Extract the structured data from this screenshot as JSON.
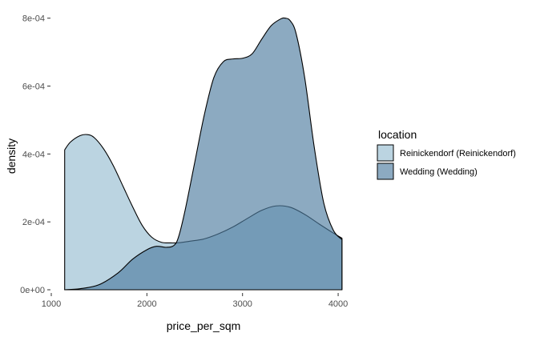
{
  "chart_data": {
    "type": "area",
    "subtype": "density",
    "title": "",
    "xlabel": "price_per_sqm",
    "ylabel": "density",
    "xlim": [
      1000,
      4100
    ],
    "ylim": [
      0,
      0.00083
    ],
    "xticks": [
      1000,
      2000,
      3000,
      4000
    ],
    "xtick_labels": [
      "1000",
      "2000",
      "3000",
      "4000"
    ],
    "yticks": [
      0,
      0.0002,
      0.0004,
      0.0006,
      0.0008
    ],
    "ytick_labels": [
      "0e+00",
      "2e-04",
      "4e-04",
      "6e-04",
      "8e-04"
    ],
    "grid": false,
    "legend": {
      "title": "location",
      "position": "right"
    },
    "series": [
      {
        "name": "Reinickendorf (Reinickendorf)",
        "color": "#9ec2d4",
        "opacity": 0.7,
        "x": [
          1140,
          1200,
          1300,
          1380,
          1450,
          1550,
          1650,
          1750,
          1850,
          1950,
          2050,
          2150,
          2250,
          2350,
          2450,
          2600,
          2750,
          2900,
          3050,
          3200,
          3350,
          3500,
          3650,
          3800,
          3950,
          4040
        ],
        "y": [
          0.000412,
          0.000435,
          0.000454,
          0.000457,
          0.000448,
          0.000414,
          0.000365,
          0.000305,
          0.000245,
          0.00019,
          0.000155,
          0.00014,
          0.000138,
          0.000139,
          0.000143,
          0.00015,
          0.000165,
          0.000185,
          0.00021,
          0.000234,
          0.000247,
          0.000243,
          0.000222,
          0.000194,
          0.000167,
          0.000152
        ]
      },
      {
        "name": "Wedding (Wedding)",
        "color": "#4e7ca0",
        "opacity": 0.65,
        "x": [
          1140,
          1300,
          1500,
          1700,
          1850,
          2000,
          2100,
          2200,
          2280,
          2330,
          2400,
          2500,
          2600,
          2700,
          2800,
          2900,
          3000,
          3100,
          3200,
          3300,
          3400,
          3450,
          3500,
          3560,
          3650,
          3750,
          3850,
          3950,
          4040
        ],
        "y": [
          0.0,
          3e-06,
          1.5e-05,
          5e-05,
          9e-05,
          0.000118,
          0.000128,
          0.000125,
          0.00013,
          0.000155,
          0.000235,
          0.000375,
          0.000515,
          0.000625,
          0.000672,
          0.00068,
          0.000682,
          0.000695,
          0.000738,
          0.000778,
          0.000798,
          0.0008,
          0.000792,
          0.000755,
          0.000625,
          0.00042,
          0.000255,
          0.000175,
          0.000148
        ]
      }
    ]
  }
}
